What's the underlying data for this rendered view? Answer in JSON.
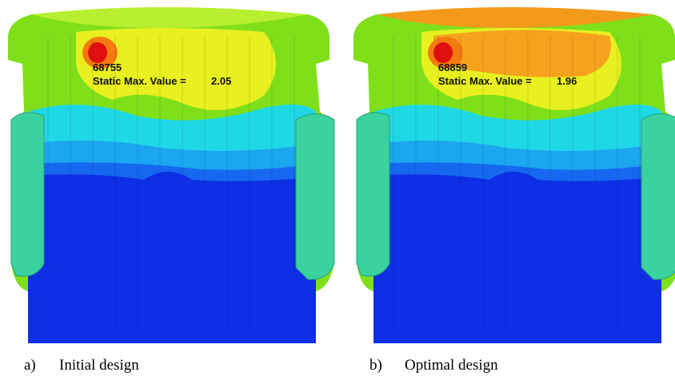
{
  "panels": [
    {
      "node": "68755",
      "label": "Static Max. Value =",
      "value": 2.05,
      "letter": "a)",
      "caption": "Initial design"
    },
    {
      "node": "68859",
      "label": "Static Max. Value =",
      "value": 1.96,
      "letter": "b)",
      "caption": "Optimal design"
    }
  ]
}
